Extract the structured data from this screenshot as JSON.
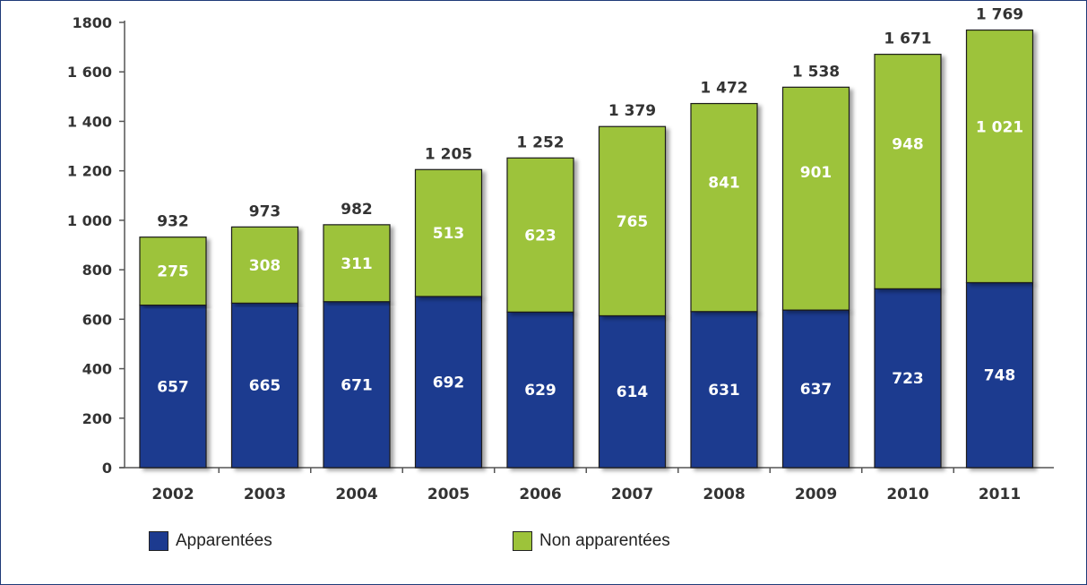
{
  "chart_data": {
    "type": "bar",
    "stacked": true,
    "categories": [
      "2002",
      "2003",
      "2004",
      "2005",
      "2006",
      "2007",
      "2008",
      "2009",
      "2010",
      "2011"
    ],
    "series": [
      {
        "name": "Apparentées",
        "color": "#1c3a8f",
        "values": [
          657,
          665,
          671,
          692,
          629,
          614,
          631,
          637,
          723,
          748
        ]
      },
      {
        "name": "Non apparentées",
        "color": "#9dc33a",
        "values": [
          275,
          308,
          311,
          513,
          623,
          765,
          841,
          901,
          948,
          1021
        ]
      }
    ],
    "totals": [
      932,
      973,
      982,
      1205,
      1252,
      1379,
      1472,
      1538,
      1671,
      1769
    ],
    "total_labels": [
      "932",
      "973",
      "982",
      "1 205",
      "1 252",
      "1 379",
      "1 472",
      "1 538",
      "1 671",
      "1 769"
    ],
    "value_labels": [
      [
        "657",
        "665",
        "671",
        "692",
        "629",
        "614",
        "631",
        "637",
        "723",
        "748"
      ],
      [
        "275",
        "308",
        "311",
        "513",
        "623",
        "765",
        "841",
        "901",
        "948",
        "1 021"
      ]
    ],
    "yticks": [
      0,
      200,
      400,
      600,
      800,
      1000,
      1200,
      1400,
      1600,
      1800
    ],
    "ytick_labels": [
      "0",
      "200",
      "400",
      "600",
      "800",
      "1 000",
      "1 200",
      "1 400",
      "1 600",
      "1800"
    ],
    "ylim": [
      0,
      1800
    ],
    "legend_position": "bottom",
    "grid": false
  },
  "legend": {
    "items": [
      {
        "label": "Apparentées",
        "color": "#1c3a8f"
      },
      {
        "label": "Non apparentées",
        "color": "#9dc33a"
      }
    ]
  }
}
